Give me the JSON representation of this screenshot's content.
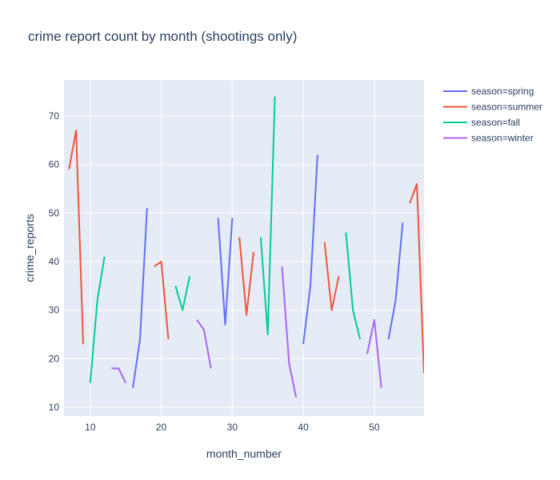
{
  "chart_data": {
    "type": "line",
    "title": "crime report count by month (shootings only)",
    "xlabel": "month_number",
    "ylabel": "crime_reports",
    "xlim": [
      6.3,
      57
    ],
    "ylim": [
      8.2,
      77.4
    ],
    "xticks": [
      10,
      20,
      30,
      40,
      50
    ],
    "yticks": [
      10,
      20,
      30,
      40,
      50,
      60,
      70
    ],
    "grid": true,
    "legend_position": "top-right",
    "series": [
      {
        "name": "season=spring",
        "color": "#636efa",
        "segments": [
          {
            "x": [
              16,
              17,
              18
            ],
            "y": [
              14,
              24,
              51
            ]
          },
          {
            "x": [
              28,
              29,
              30
            ],
            "y": [
              49,
              27,
              49
            ]
          },
          {
            "x": [
              40,
              41,
              42
            ],
            "y": [
              23,
              35,
              62
            ]
          },
          {
            "x": [
              52,
              53,
              54
            ],
            "y": [
              24,
              32,
              48
            ]
          }
        ]
      },
      {
        "name": "season=summer",
        "color": "#ef553b",
        "segments": [
          {
            "x": [
              7,
              8,
              9
            ],
            "y": [
              59,
              67,
              23
            ]
          },
          {
            "x": [
              19,
              20,
              21
            ],
            "y": [
              39,
              40,
              24
            ]
          },
          {
            "x": [
              31,
              32,
              33
            ],
            "y": [
              45,
              29,
              42
            ]
          },
          {
            "x": [
              43,
              44,
              45
            ],
            "y": [
              44,
              30,
              37
            ]
          },
          {
            "x": [
              55,
              56,
              57
            ],
            "y": [
              52,
              56,
              17
            ]
          }
        ]
      },
      {
        "name": "season=fall",
        "color": "#00cc96",
        "segments": [
          {
            "x": [
              10,
              11,
              12
            ],
            "y": [
              15,
              32,
              41
            ]
          },
          {
            "x": [
              22,
              23,
              24
            ],
            "y": [
              35,
              30,
              37
            ]
          },
          {
            "x": [
              34,
              35,
              36
            ],
            "y": [
              45,
              25,
              74
            ]
          },
          {
            "x": [
              46,
              47,
              48
            ],
            "y": [
              46,
              30,
              24
            ]
          }
        ]
      },
      {
        "name": "season=winter",
        "color": "#ab63fa",
        "segments": [
          {
            "x": [
              13,
              14,
              15
            ],
            "y": [
              18,
              18,
              15
            ]
          },
          {
            "x": [
              25,
              26,
              27
            ],
            "y": [
              28,
              26,
              18
            ]
          },
          {
            "x": [
              37,
              38,
              39
            ],
            "y": [
              39,
              19,
              12
            ]
          },
          {
            "x": [
              49,
              50,
              51
            ],
            "y": [
              21,
              28,
              14
            ]
          }
        ]
      }
    ]
  }
}
